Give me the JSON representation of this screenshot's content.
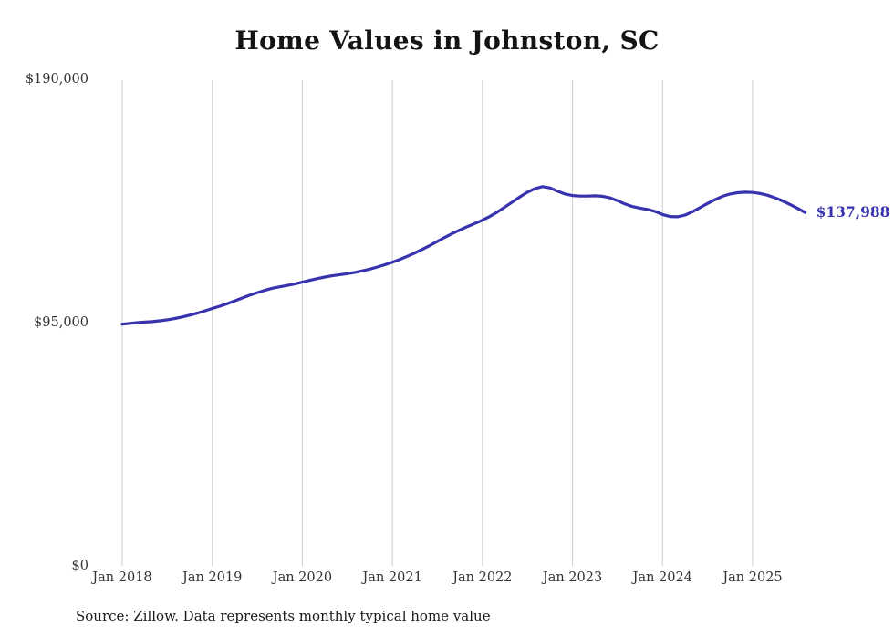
{
  "chart_data": {
    "type": "line",
    "title": "Home Values in Johnston, SC",
    "source": "Source: Zillow. Data represents monthly typical home value",
    "end_label": "$137,988",
    "end_value": 137988,
    "line_color": "#3733ae",
    "grid_color": "#cccccc",
    "axis_text_color": "#333333",
    "grid": "vertical-only",
    "legend": "none",
    "ylim": [
      0,
      190000
    ],
    "y_ticks": [
      {
        "label": "$190,000",
        "value": 190000
      },
      {
        "label": "$95,000",
        "value": 95000
      },
      {
        "label": "$0",
        "value": 0
      }
    ],
    "x_ticks": [
      {
        "label": "Jan 2018",
        "month_index": 0
      },
      {
        "label": "Jan 2019",
        "month_index": 12
      },
      {
        "label": "Jan 2020",
        "month_index": 24
      },
      {
        "label": "Jan 2021",
        "month_index": 36
      },
      {
        "label": "Jan 2022",
        "month_index": 48
      },
      {
        "label": "Jan 2023",
        "month_index": 60
      },
      {
        "label": "Jan 2024",
        "month_index": 72
      },
      {
        "label": "Jan 2025",
        "month_index": 84
      }
    ],
    "series": [
      {
        "name": "Typical home value",
        "start_month": "2018-01",
        "frequency": "monthly",
        "values": [
          94400,
          94700,
          95000,
          95200,
          95400,
          95700,
          96100,
          96600,
          97200,
          97900,
          98700,
          99600,
          100500,
          101400,
          102400,
          103500,
          104600,
          105700,
          106700,
          107600,
          108400,
          109000,
          109500,
          110100,
          110800,
          111500,
          112200,
          112800,
          113300,
          113700,
          114100,
          114600,
          115200,
          115900,
          116700,
          117600,
          118600,
          119700,
          120900,
          122200,
          123600,
          125100,
          126700,
          128300,
          129800,
          131200,
          132500,
          133700,
          135000,
          136500,
          138200,
          140100,
          142100,
          144100,
          145900,
          147300,
          148100,
          147600,
          146300,
          145200,
          144600,
          144400,
          144400,
          144500,
          144300,
          143700,
          142600,
          141300,
          140300,
          139700,
          139200,
          138400,
          137200,
          136400,
          136300,
          137000,
          138300,
          139900,
          141500,
          143000,
          144300,
          145200,
          145700,
          145900,
          145800,
          145400,
          144700,
          143700,
          142500,
          141100,
          139600,
          137988
        ]
      }
    ]
  }
}
